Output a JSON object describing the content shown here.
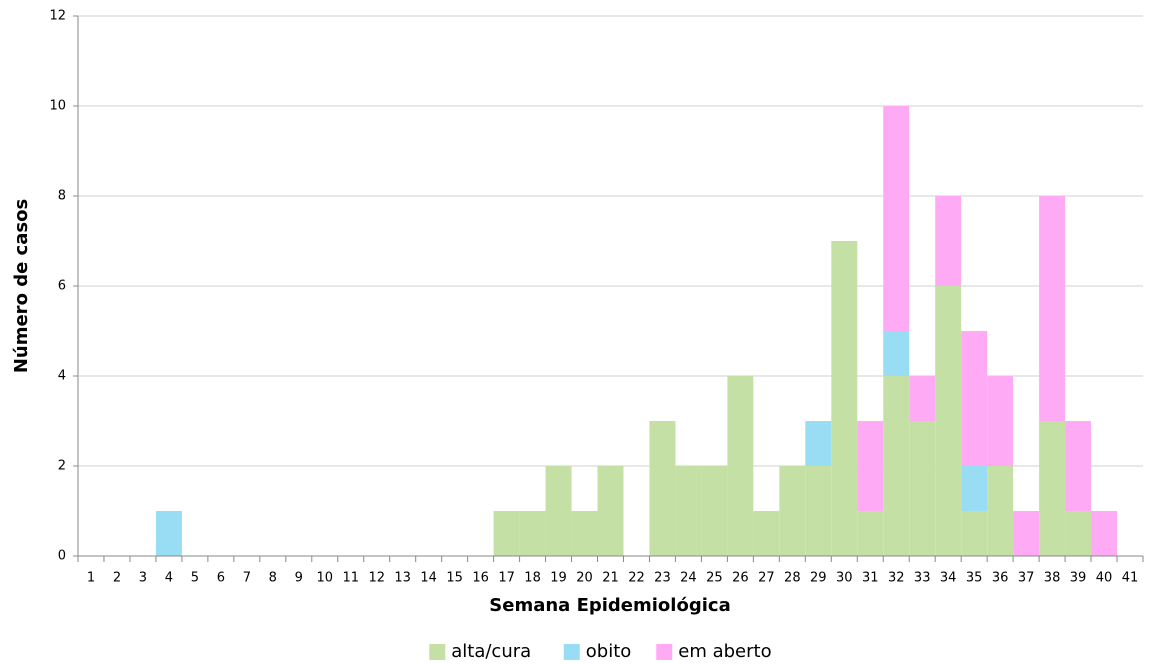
{
  "chart_data": {
    "type": "bar",
    "stacked": true,
    "xlabel": "Semana Epidemiológica",
    "ylabel": "Número de casos",
    "categories": [
      "1",
      "2",
      "3",
      "4",
      "5",
      "6",
      "7",
      "8",
      "9",
      "10",
      "11",
      "12",
      "13",
      "14",
      "15",
      "16",
      "17",
      "18",
      "19",
      "20",
      "21",
      "22",
      "23",
      "24",
      "25",
      "26",
      "27",
      "28",
      "29",
      "30",
      "31",
      "32",
      "33",
      "34",
      "35",
      "36",
      "37",
      "38",
      "39",
      "40",
      "41"
    ],
    "series": [
      {
        "name": "alta/cura",
        "color": "#c5e0a5",
        "values": [
          0,
          0,
          0,
          0,
          0,
          0,
          0,
          0,
          0,
          0,
          0,
          0,
          0,
          0,
          0,
          0,
          1,
          1,
          2,
          1,
          2,
          0,
          3,
          2,
          2,
          4,
          1,
          2,
          2,
          7,
          1,
          4,
          3,
          6,
          1,
          2,
          0,
          3,
          1,
          0,
          0
        ]
      },
      {
        "name": "obito",
        "color": "#99ddf5",
        "values": [
          0,
          0,
          0,
          1,
          0,
          0,
          0,
          0,
          0,
          0,
          0,
          0,
          0,
          0,
          0,
          0,
          0,
          0,
          0,
          0,
          0,
          0,
          0,
          0,
          0,
          0,
          0,
          0,
          1,
          0,
          0,
          1,
          0,
          0,
          1,
          0,
          0,
          0,
          0,
          0,
          0
        ]
      },
      {
        "name": "em aberto",
        "color": "#ffaaf5",
        "values": [
          0,
          0,
          0,
          0,
          0,
          0,
          0,
          0,
          0,
          0,
          0,
          0,
          0,
          0,
          0,
          0,
          0,
          0,
          0,
          0,
          0,
          0,
          0,
          0,
          0,
          0,
          0,
          0,
          0,
          0,
          2,
          5,
          1,
          2,
          3,
          2,
          1,
          5,
          2,
          1,
          0
        ]
      }
    ],
    "ylim": [
      0,
      12
    ],
    "yticks": [
      0,
      2,
      4,
      6,
      8,
      10,
      12
    ],
    "grid": true,
    "legend": "bottom"
  }
}
